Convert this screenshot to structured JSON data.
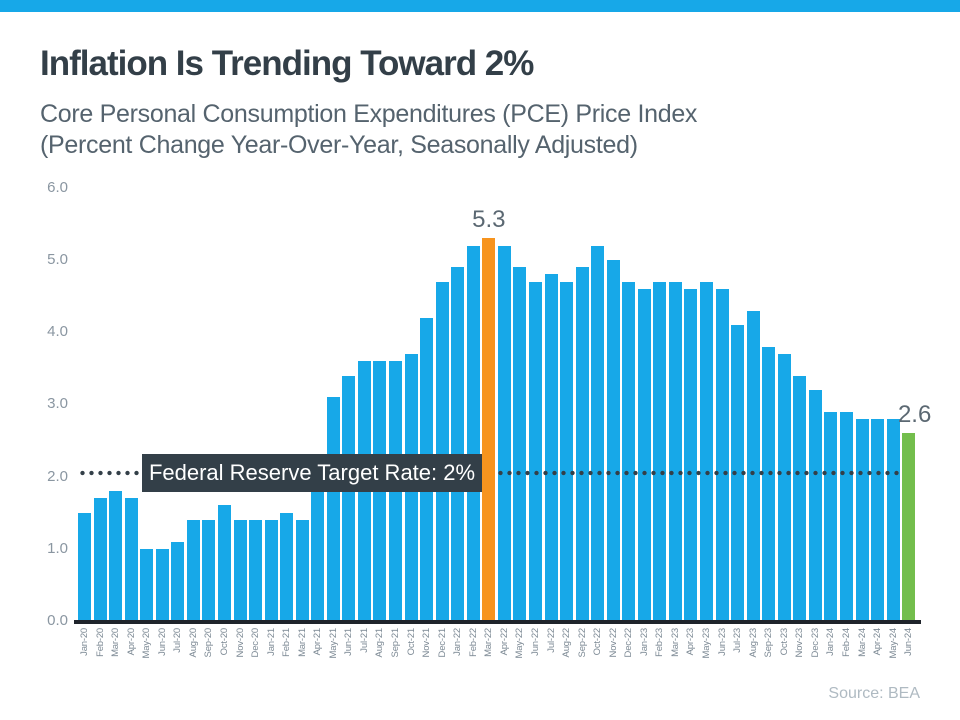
{
  "header": {
    "title": "Inflation Is Trending Toward 2%",
    "subtitle_line1": "Core Personal Consumption Expenditures (PCE) Price Index",
    "subtitle_line2": "(Percent Change Year-Over-Year, Seasonally Adjusted)"
  },
  "chart_data": {
    "type": "bar",
    "title": "Inflation Is Trending Toward 2%",
    "subtitle": "Core Personal Consumption Expenditures (PCE) Price Index (Percent Change Year-Over-Year, Seasonally Adjusted)",
    "categories": [
      "Jan-20",
      "Feb-20",
      "Mar-20",
      "Apr-20",
      "May-20",
      "Jun-20",
      "Jul-20",
      "Aug-20",
      "Sep-20",
      "Oct-20",
      "Nov-20",
      "Dec-20",
      "Jan-21",
      "Feb-21",
      "Mar-21",
      "Apr-21",
      "May-21",
      "Jun-21",
      "Jul-21",
      "Aug-21",
      "Sep-21",
      "Oct-21",
      "Nov-21",
      "Dec-21",
      "Jan-22",
      "Feb-22",
      "Mar-22",
      "Apr-22",
      "May-22",
      "Jun-22",
      "Jul-22",
      "Aug-22",
      "Sep-22",
      "Oct-22",
      "Nov-22",
      "Dec-22",
      "Jan-23",
      "Feb-23",
      "Mar-23",
      "Apr-23",
      "May-23",
      "Jun-23",
      "Jul-23",
      "Aug-23",
      "Sep-23",
      "Oct-23",
      "Nov-23",
      "Dec-23",
      "Jan-24",
      "Feb-24",
      "Mar-24",
      "Apr-24",
      "May-24",
      "Jun-24"
    ],
    "values": [
      1.5,
      1.7,
      1.8,
      1.7,
      1.0,
      1.0,
      1.1,
      1.4,
      1.4,
      1.6,
      1.4,
      1.4,
      1.4,
      1.5,
      1.4,
      2.2,
      3.1,
      3.4,
      3.6,
      3.6,
      3.6,
      3.7,
      4.2,
      4.7,
      4.9,
      5.2,
      5.3,
      5.2,
      4.9,
      4.7,
      4.8,
      4.7,
      4.9,
      5.2,
      5.0,
      4.7,
      4.6,
      4.7,
      4.7,
      4.6,
      4.7,
      4.6,
      4.1,
      4.3,
      3.8,
      3.7,
      3.4,
      3.2,
      2.9,
      2.9,
      2.8,
      2.8,
      2.8,
      2.6
    ],
    "ylim": [
      0,
      6
    ],
    "yticks": [
      "6.0",
      "5.0",
      "4.0",
      "3.0",
      "2.0",
      "1.0",
      "0.0"
    ],
    "grid": "off",
    "legend": "none",
    "annotations": {
      "peak_index": 26,
      "peak_label": "5.3",
      "latest_index": 53,
      "latest_label": "2.6"
    },
    "target_line": {
      "value": 2.0,
      "label": "Federal Reserve Target Rate: 2%"
    },
    "colors": {
      "bar": "#17A8E8",
      "peak_bar": "#F7941E",
      "latest_bar": "#73BE4C",
      "accent_strip": "#17A8E8",
      "target_line": "#333F48",
      "callout_bg": "#333F48"
    }
  },
  "footer": {
    "source": "Source: BEA"
  }
}
